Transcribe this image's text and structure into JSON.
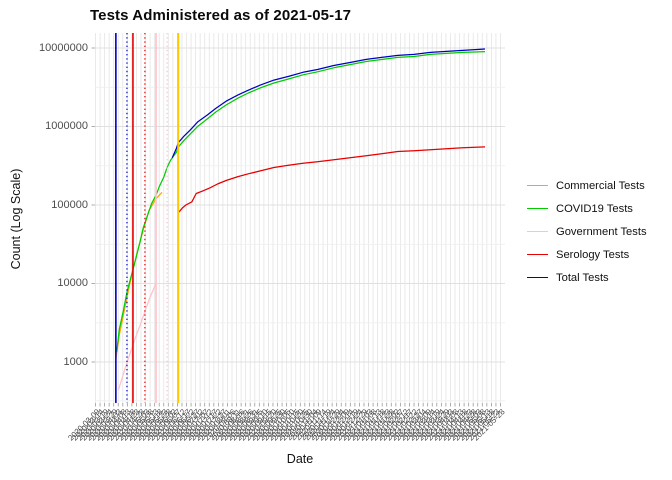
{
  "title": "Tests Administered as of 2021-05-17",
  "x_axis_label": "Date",
  "y_axis_label": "Count (Log Scale)",
  "y_tick_labels": [
    "10000000",
    "1000000",
    "100000",
    "10000",
    "1000"
  ],
  "legend": {
    "items": [
      {
        "label": "Commercial Tests",
        "color": "#FFA500"
      },
      {
        "label": "COVID19 Tests",
        "color": "#00CD00"
      },
      {
        "label": "Government Tests",
        "color": "#FFC0CB"
      },
      {
        "label": "Serology Tests",
        "color": "#E60000"
      },
      {
        "label": "Total Tests",
        "color": "#0000C3"
      }
    ]
  },
  "chart_data": {
    "type": "line",
    "title": "Tests Administered as of 2021-05-17",
    "xlabel": "Date",
    "ylabel": "Count (Log Scale)",
    "y_scale": "log10",
    "y_ticks": [
      1000,
      10000,
      100000,
      1000000,
      10000000
    ],
    "ylim": [
      300,
      15000000
    ],
    "grid": "on",
    "legend_position": "right",
    "x_domain": [
      "2020-03-10",
      "2021-05-17"
    ],
    "x_tick_labels": [
      "2020-03-09",
      "2020-03-14",
      "2020-03-19",
      "2020-03-24",
      "2020-03-29",
      "2020-04-03",
      "2020-04-08",
      "2020-04-13",
      "2020-04-18",
      "2020-04-23",
      "2020-04-28",
      "2020-05-03",
      "2020-05-08",
      "2020-05-13",
      "2020-05-18",
      "2020-05-23",
      "2020-05-28",
      "2020-06-02",
      "2020-06-07",
      "2020-06-12",
      "2020-06-17",
      "2020-06-22",
      "2020-06-27",
      "2020-07-02",
      "2020-07-07",
      "2020-07-12",
      "2020-07-17",
      "2020-07-22",
      "2020-07-27",
      "2020-08-01",
      "2020-08-06",
      "2020-08-11",
      "2020-08-16",
      "2020-08-21",
      "2020-08-26",
      "2020-08-31",
      "2020-09-05",
      "2020-09-10",
      "2020-09-15",
      "2020-09-20",
      "2020-09-25",
      "2020-09-30",
      "2020-10-05",
      "2020-10-10",
      "2020-10-15",
      "2020-10-20",
      "2020-10-25",
      "2020-10-30",
      "2020-11-04",
      "2020-11-09",
      "2020-11-14",
      "2020-11-19",
      "2020-11-24",
      "2020-11-29",
      "2020-12-04",
      "2020-12-09",
      "2020-12-14",
      "2020-12-19",
      "2020-12-24",
      "2020-12-29",
      "2021-01-03",
      "2021-01-08",
      "2021-01-13",
      "2021-01-18",
      "2021-01-23",
      "2021-01-28",
      "2021-02-02",
      "2021-02-07",
      "2021-02-12",
      "2021-02-17",
      "2021-02-22",
      "2021-02-27",
      "2021-03-04",
      "2021-03-09",
      "2021-03-14",
      "2021-03-19",
      "2021-03-24",
      "2021-03-29",
      "2021-04-03",
      "2021-04-08",
      "2021-04-13",
      "2021-04-18",
      "2021-04-23",
      "2021-04-28",
      "2021-05-03",
      "2021-05-08",
      "2021-05-13",
      "2021-05-18",
      "2021-05-23",
      "2021-05-28"
    ],
    "vlines": [
      {
        "name": "total-start-marker",
        "color": "#0000C3",
        "style": "solid",
        "date": "2020-03-11"
      },
      {
        "name": "total-dotted-marker",
        "color": "#0000C3",
        "style": "dotted",
        "date": "2020-03-24"
      },
      {
        "name": "serology-solid-marker",
        "color": "#E60000",
        "style": "solid",
        "date": "2020-03-31"
      },
      {
        "name": "serology-dotted-marker",
        "color": "#E60000",
        "style": "dotted",
        "date": "2020-04-14"
      },
      {
        "name": "government-solid-marker",
        "color": "#FFC0CB",
        "style": "solid",
        "date": "2020-04-27"
      },
      {
        "name": "government-dotted-marker",
        "color": "#FFC0CB",
        "style": "dotted",
        "date": "2020-05-10"
      },
      {
        "name": "commercial-start-marker",
        "color": "#FFC800",
        "style": "solid",
        "date": "2020-05-23"
      }
    ],
    "series": [
      {
        "name": "Commercial Tests",
        "color": "#FFA500",
        "points": [
          [
            "2020-03-11",
            1100
          ],
          [
            "2020-03-15",
            2200
          ],
          [
            "2020-03-22",
            5200
          ],
          [
            "2020-03-29",
            12000
          ],
          [
            "2020-04-05",
            25000
          ],
          [
            "2020-04-12",
            48000
          ],
          [
            "2020-04-19",
            86000
          ],
          [
            "2020-04-27",
            120000
          ],
          [
            "2020-05-04",
            145000
          ]
        ]
      },
      {
        "name": "Government Tests",
        "color": "#FFC0CB",
        "points": [
          [
            "2020-03-14",
            440
          ],
          [
            "2020-03-22",
            840
          ],
          [
            "2020-03-31",
            1660
          ],
          [
            "2020-04-10",
            3300
          ],
          [
            "2020-04-19",
            6300
          ],
          [
            "2020-04-27",
            10000
          ]
        ]
      },
      {
        "name": "COVID19 Tests",
        "color": "#00CD00",
        "points": [
          [
            "2020-03-12",
            1350
          ],
          [
            "2020-03-15",
            2600
          ],
          [
            "2020-03-20",
            4600
          ],
          [
            "2020-03-24",
            7800
          ],
          [
            "2020-03-29",
            12400
          ],
          [
            "2020-04-03",
            20000
          ],
          [
            "2020-04-08",
            33000
          ],
          [
            "2020-04-12",
            51000
          ],
          [
            "2020-04-17",
            74000
          ],
          [
            "2020-04-22",
            105000
          ],
          [
            "2020-04-27",
            133000
          ],
          [
            "2020-05-01",
            173000
          ],
          [
            "2020-05-06",
            225000
          ],
          [
            "2020-05-10",
            300000
          ],
          [
            "2020-05-14",
            370000
          ],
          [
            "2020-05-18",
            430000
          ],
          [
            "2020-05-21",
            470000
          ],
          [
            "2020-05-23",
            545000
          ],
          [
            "2020-05-30",
            670000
          ],
          [
            "2020-06-06",
            800000
          ],
          [
            "2020-06-15",
            1010000
          ],
          [
            "2020-06-26",
            1250000
          ],
          [
            "2020-07-06",
            1530000
          ],
          [
            "2020-07-18",
            1880000
          ],
          [
            "2020-08-01",
            2300000
          ],
          [
            "2020-08-13",
            2670000
          ],
          [
            "2020-08-27",
            3100000
          ],
          [
            "2020-09-12",
            3580000
          ],
          [
            "2020-09-29",
            4030000
          ],
          [
            "2020-10-16",
            4550000
          ],
          [
            "2020-11-02",
            4970000
          ],
          [
            "2020-11-21",
            5600000
          ],
          [
            "2020-12-10",
            6140000
          ],
          [
            "2020-12-29",
            6730000
          ],
          [
            "2021-01-16",
            7140000
          ],
          [
            "2021-02-04",
            7580000
          ],
          [
            "2021-02-23",
            7800000
          ],
          [
            "2021-03-14",
            8290000
          ],
          [
            "2021-04-02",
            8530000
          ],
          [
            "2021-04-21",
            8780000
          ],
          [
            "2021-05-05",
            8900000
          ],
          [
            "2021-05-17",
            9000000
          ]
        ]
      },
      {
        "name": "Serology Tests",
        "color": "#E60000",
        "points": [
          [
            "2020-05-23",
            79000
          ],
          [
            "2020-05-28",
            92000
          ],
          [
            "2020-06-01",
            100000
          ],
          [
            "2020-06-08",
            110000
          ],
          [
            "2020-06-13",
            140000
          ],
          [
            "2020-06-20",
            150000
          ],
          [
            "2020-06-29",
            165000
          ],
          [
            "2020-07-08",
            185000
          ],
          [
            "2020-07-18",
            205000
          ],
          [
            "2020-08-01",
            230000
          ],
          [
            "2020-08-13",
            250000
          ],
          [
            "2020-08-27",
            272000
          ],
          [
            "2020-09-12",
            300000
          ],
          [
            "2020-09-29",
            320000
          ],
          [
            "2020-10-16",
            340000
          ],
          [
            "2020-11-02",
            355000
          ],
          [
            "2020-11-21",
            377000
          ],
          [
            "2020-12-10",
            400000
          ],
          [
            "2020-12-29",
            425000
          ],
          [
            "2021-01-16",
            450000
          ],
          [
            "2021-02-04",
            480000
          ],
          [
            "2021-02-23",
            490000
          ],
          [
            "2021-03-14",
            505000
          ],
          [
            "2021-04-02",
            520000
          ],
          [
            "2021-04-21",
            535000
          ],
          [
            "2021-05-17",
            550000
          ]
        ]
      },
      {
        "name": "Total Tests",
        "color": "#0000C3",
        "points": [
          [
            "2020-05-16",
            400000
          ],
          [
            "2020-05-21",
            530000
          ],
          [
            "2020-05-23",
            620000
          ],
          [
            "2020-05-30",
            760000
          ],
          [
            "2020-06-06",
            900000
          ],
          [
            "2020-06-15",
            1150000
          ],
          [
            "2020-06-26",
            1400000
          ],
          [
            "2020-07-06",
            1700000
          ],
          [
            "2020-07-18",
            2100000
          ],
          [
            "2020-08-01",
            2530000
          ],
          [
            "2020-08-13",
            2900000
          ],
          [
            "2020-08-27",
            3370000
          ],
          [
            "2020-09-12",
            3900000
          ],
          [
            "2020-09-29",
            4350000
          ],
          [
            "2020-10-16",
            4900000
          ],
          [
            "2020-11-02",
            5330000
          ],
          [
            "2020-11-21",
            5980000
          ],
          [
            "2020-12-10",
            6540000
          ],
          [
            "2020-12-29",
            7160000
          ],
          [
            "2021-01-16",
            7590000
          ],
          [
            "2021-02-04",
            8060000
          ],
          [
            "2021-02-23",
            8290000
          ],
          [
            "2021-03-14",
            8800000
          ],
          [
            "2021-04-02",
            9050000
          ],
          [
            "2021-04-21",
            9310000
          ],
          [
            "2021-05-17",
            9700000
          ]
        ]
      }
    ]
  }
}
